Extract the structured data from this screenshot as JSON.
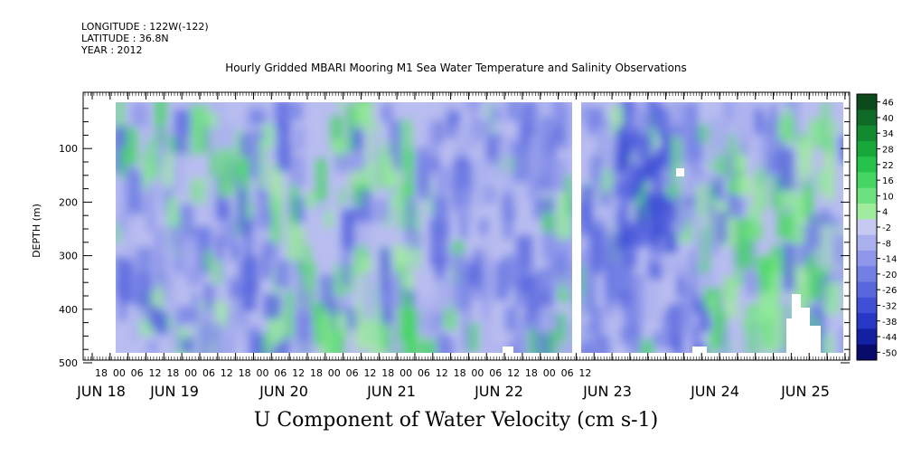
{
  "header": {
    "longitude": "LONGITUDE : 122W(-122)",
    "latitude": "LATITUDE : 36.8N",
    "year": "YEAR : 2012",
    "title": "Hourly Gridded MBARI Mooring M1 Sea Water Temperature and Salinity Observations",
    "bottom_title": "U Component of Water Velocity (cm s-1)"
  },
  "chart_data": {
    "type": "heatmap",
    "ylabel": "DEPTH (m)",
    "ylim": [
      500,
      0
    ],
    "y_ticks": [
      100,
      200,
      300,
      400,
      500
    ],
    "x_hour_labels": [
      "18",
      "00",
      "06",
      "12",
      "18",
      "00",
      "06",
      "12",
      "18",
      "00",
      "06",
      "12",
      "18",
      "00",
      "06",
      "12",
      "18",
      "00",
      "06",
      "12",
      "18",
      "00",
      "06",
      "12",
      "18",
      "00",
      "06",
      "12"
    ],
    "x_day_labels": [
      "JUN 18",
      "JUN 19",
      "JUN 20",
      "JUN 21",
      "JUN 22",
      "JUN 23",
      "JUN 24",
      "JUN 25"
    ],
    "colorbar": {
      "labels": [
        "46",
        "40",
        "34",
        "28",
        "22",
        "16",
        "10",
        "4",
        "-2",
        "-8",
        "-14",
        "-20",
        "-26",
        "-32",
        "-38",
        "-44",
        "-50"
      ],
      "colors": [
        "#0c4a1c",
        "#0e6a26",
        "#138a2f",
        "#18a83a",
        "#27c24a",
        "#45d662",
        "#6de07f",
        "#a0ec9f",
        "#c6c9f2",
        "#aab0ee",
        "#8e97ea",
        "#7280e4",
        "#5867de",
        "#3f50d6",
        "#2838c6",
        "#1420a2",
        "#080a6c"
      ]
    },
    "gaps": [
      "2012-06-22T23:00/2012-06-23T01:00"
    ]
  }
}
